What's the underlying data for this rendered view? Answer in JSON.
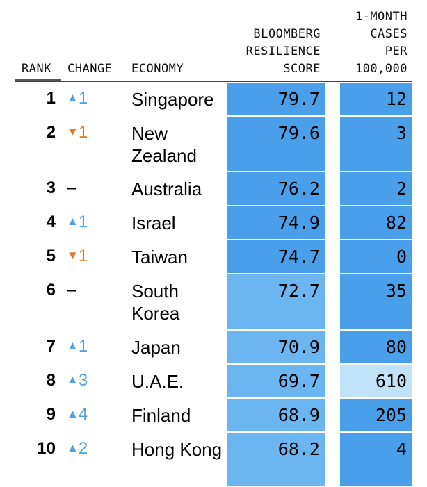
{
  "headers": {
    "rank": "RANK",
    "change": "CHANGE",
    "economy": "ECONOMY",
    "score": [
      "BLOOMBERG",
      "RESILIENCE",
      "SCORE"
    ],
    "cases": [
      "1-MONTH",
      "CASES",
      "PER",
      "100,000"
    ]
  },
  "colors": {
    "score_dark": "#4a9fea",
    "score_light": "#6bb6f0",
    "cases_dark": "#4a9fea",
    "cases_light": "#bfe2f8",
    "up": "#4ea3e0",
    "down": "#e07a2f"
  },
  "chart_data": {
    "type": "table",
    "columns": [
      "RANK",
      "CHANGE",
      "ECONOMY",
      "BLOOMBERG RESILIENCE SCORE",
      "1-MONTH CASES PER 100,000"
    ],
    "rows": [
      {
        "rank": "1",
        "change_dir": "up",
        "change": "1",
        "economy": "Singapore",
        "score": "79.7",
        "cases": "12"
      },
      {
        "rank": "2",
        "change_dir": "down",
        "change": "1",
        "economy": "New Zealand",
        "score": "79.6",
        "cases": "3"
      },
      {
        "rank": "3",
        "change_dir": "none",
        "change": "–",
        "economy": "Australia",
        "score": "76.2",
        "cases": "2"
      },
      {
        "rank": "4",
        "change_dir": "up",
        "change": "1",
        "economy": "Israel",
        "score": "74.9",
        "cases": "82"
      },
      {
        "rank": "5",
        "change_dir": "down",
        "change": "1",
        "economy": "Taiwan",
        "score": "74.7",
        "cases": "0"
      },
      {
        "rank": "6",
        "change_dir": "none",
        "change": "–",
        "economy": "South Korea",
        "score": "72.7",
        "cases": "35"
      },
      {
        "rank": "7",
        "change_dir": "up",
        "change": "1",
        "economy": "Japan",
        "score": "70.9",
        "cases": "80"
      },
      {
        "rank": "8",
        "change_dir": "up",
        "change": "3",
        "economy": "U.A.E.",
        "score": "69.7",
        "cases": "610"
      },
      {
        "rank": "9",
        "change_dir": "up",
        "change": "4",
        "economy": "Finland",
        "score": "68.9",
        "cases": "205"
      },
      {
        "rank": "10",
        "change_dir": "up",
        "change": "2",
        "economy": "Hong Kong",
        "score": "68.2",
        "cases": "4"
      }
    ]
  }
}
